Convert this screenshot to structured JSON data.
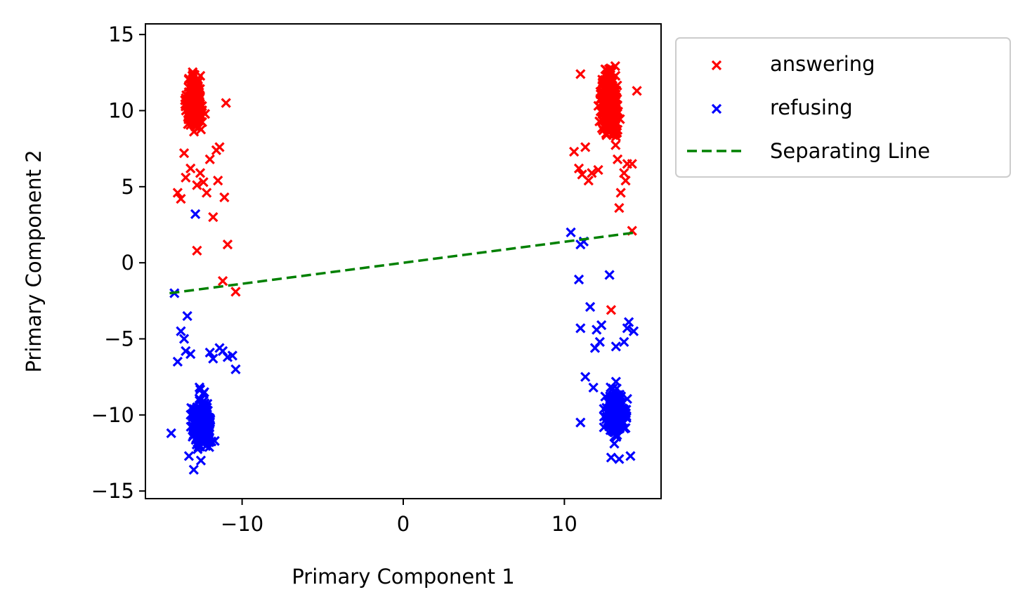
{
  "chart_data": {
    "type": "scatter",
    "xlabel": "Primary Component 1",
    "ylabel": "Primary Component 2",
    "xlim": [
      -16,
      16
    ],
    "ylim": [
      -15.5,
      15.7
    ],
    "xticks": [
      -10,
      0,
      10
    ],
    "yticks": [
      -15,
      -10,
      -5,
      0,
      5,
      10,
      15
    ],
    "grid": false,
    "legend": "outside-right-top",
    "marker": "x",
    "series": [
      {
        "name": "answering",
        "color": "#ff0000",
        "clusters": [
          {
            "cx": -13.0,
            "cy": 10.5,
            "sx": 0.45,
            "sy": 1.3,
            "n": 260
          },
          {
            "cx": 12.8,
            "cy": 10.6,
            "sx": 0.45,
            "sy": 1.6,
            "n": 300
          }
        ],
        "points": [
          [
            -14.0,
            4.6
          ],
          [
            -13.8,
            4.2
          ],
          [
            -13.5,
            5.6
          ],
          [
            -13.2,
            6.2
          ],
          [
            -12.8,
            5.1
          ],
          [
            -12.6,
            5.9
          ],
          [
            -12.4,
            5.3
          ],
          [
            -12.2,
            4.6
          ],
          [
            -11.8,
            3.0
          ],
          [
            -11.4,
            7.6
          ],
          [
            -11.0,
            10.5
          ],
          [
            -11.1,
            4.3
          ],
          [
            -12.8,
            0.8
          ],
          [
            -10.9,
            1.2
          ],
          [
            -11.2,
            -1.2
          ],
          [
            -10.4,
            -1.9
          ],
          [
            -11.5,
            5.4
          ],
          [
            -13.6,
            7.2
          ],
          [
            -12.0,
            6.8
          ],
          [
            -11.6,
            7.4
          ],
          [
            10.6,
            7.3
          ],
          [
            10.9,
            6.2
          ],
          [
            11.1,
            5.8
          ],
          [
            11.5,
            5.4
          ],
          [
            11.7,
            5.9
          ],
          [
            12.1,
            6.1
          ],
          [
            13.5,
            4.6
          ],
          [
            13.8,
            5.4
          ],
          [
            13.9,
            6.5
          ],
          [
            14.2,
            6.5
          ],
          [
            13.4,
            3.6
          ],
          [
            14.5,
            11.3
          ],
          [
            11.0,
            12.4
          ],
          [
            14.2,
            2.1
          ],
          [
            12.9,
            -3.1
          ],
          [
            11.3,
            7.6
          ],
          [
            13.7,
            5.9
          ],
          [
            13.3,
            6.8
          ]
        ]
      },
      {
        "name": "refusing",
        "color": "#0000ff",
        "clusters": [
          {
            "cx": -12.5,
            "cy": -10.6,
            "sx": 0.45,
            "sy": 1.4,
            "n": 300
          },
          {
            "cx": 13.2,
            "cy": -10.0,
            "sx": 0.5,
            "sy": 1.2,
            "n": 260
          }
        ],
        "points": [
          [
            -14.4,
            -11.2
          ],
          [
            -14.0,
            -6.5
          ],
          [
            -13.8,
            -4.5
          ],
          [
            -13.6,
            -5.0
          ],
          [
            -13.5,
            -5.8
          ],
          [
            -13.2,
            -6.0
          ],
          [
            -13.4,
            -3.5
          ],
          [
            -11.4,
            -5.6
          ],
          [
            -11.2,
            -5.8
          ],
          [
            -10.9,
            -6.2
          ],
          [
            -10.6,
            -6.1
          ],
          [
            -10.4,
            -7.0
          ],
          [
            -11.8,
            -6.3
          ],
          [
            -12.0,
            -5.9
          ],
          [
            -14.2,
            -2.0
          ],
          [
            -12.9,
            3.2
          ],
          [
            -13.3,
            -12.7
          ],
          [
            -13.0,
            -13.6
          ],
          [
            10.4,
            2.0
          ],
          [
            11.0,
            1.2
          ],
          [
            11.2,
            1.4
          ],
          [
            10.9,
            -1.1
          ],
          [
            11.0,
            -4.3
          ],
          [
            11.6,
            -2.9
          ],
          [
            12.0,
            -4.4
          ],
          [
            12.3,
            -4.1
          ],
          [
            12.8,
            -0.8
          ],
          [
            14.0,
            -3.9
          ],
          [
            13.9,
            -4.3
          ],
          [
            14.3,
            -4.5
          ],
          [
            13.7,
            -5.2
          ],
          [
            11.0,
            -10.5
          ],
          [
            11.3,
            -7.5
          ],
          [
            11.9,
            -5.6
          ],
          [
            12.2,
            -5.2
          ],
          [
            13.2,
            -5.5
          ],
          [
            12.9,
            -12.8
          ],
          [
            13.4,
            -12.9
          ],
          [
            14.1,
            -12.7
          ],
          [
            11.8,
            -8.2
          ]
        ]
      },
      {
        "name": "Separating Line",
        "color": "#008000",
        "style": "dashed",
        "line": [
          [
            -14.5,
            -2.0
          ],
          [
            14.5,
            2.0
          ]
        ]
      }
    ]
  }
}
